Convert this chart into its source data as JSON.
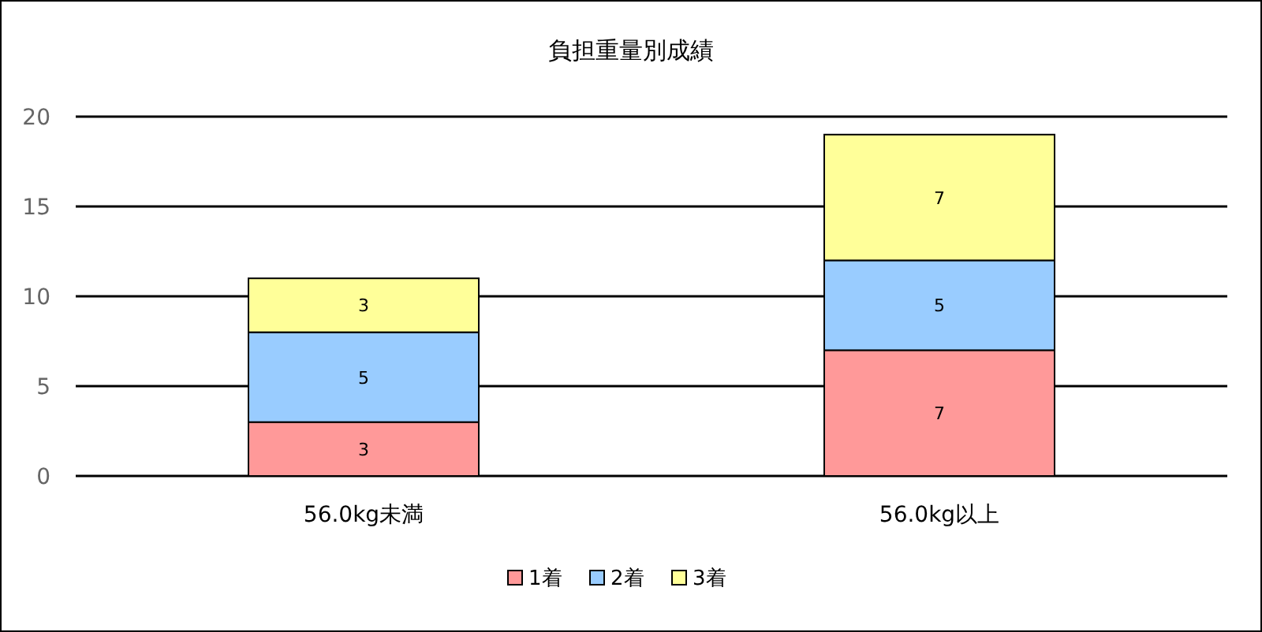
{
  "chart_data": {
    "type": "bar",
    "title": "負担重量別成績",
    "categories": [
      "56.0kg未満",
      "56.0kg以上"
    ],
    "series": [
      {
        "name": "1着",
        "color": "#ff9999",
        "values": [
          3,
          7
        ]
      },
      {
        "name": "2着",
        "color": "#99ccff",
        "values": [
          5,
          5
        ]
      },
      {
        "name": "3着",
        "color": "#ffff99",
        "values": [
          3,
          7
        ]
      }
    ],
    "stacked": true,
    "ylim": [
      0,
      20
    ],
    "yticks": [
      0,
      5,
      10,
      15,
      20
    ],
    "grid": "y",
    "legend": "bottom",
    "data_labels": true
  }
}
